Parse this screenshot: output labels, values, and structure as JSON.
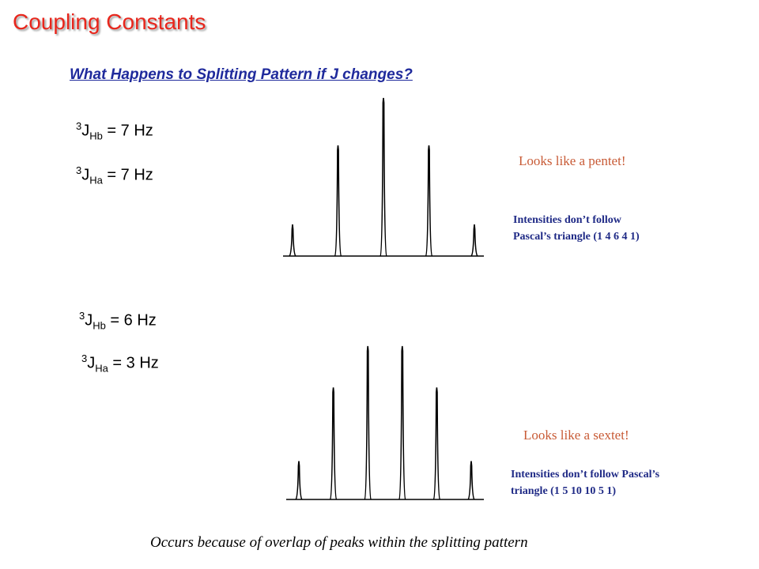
{
  "title": "Coupling Constants",
  "subtitle": "What Happens to Splitting Pattern if J changes?",
  "example1": {
    "j1": {
      "sup": "3",
      "j": "J",
      "sub": "Hb",
      "value": " = 7 Hz"
    },
    "j2": {
      "sup": "3",
      "j": "J",
      "sub": "Ha",
      "value": " = 7 Hz"
    },
    "note": "Looks like a pentet!",
    "intensity_line1": "Intensities don’t follow",
    "intensity_line2": "Pascal’s triangle (1 4 6 4 1)",
    "peak_heights": [
      0.2,
      0.7,
      1.0,
      0.7,
      0.2
    ]
  },
  "example2": {
    "j1": {
      "sup": "3",
      "j": "J",
      "sub": "Hb",
      "value": " = 6 Hz"
    },
    "j2": {
      "sup": "3",
      "j": "J",
      "sub": "Ha",
      "value": " = 3 Hz"
    },
    "note": "Looks like a sextet!",
    "intensity_line1": "Intensities don’t follow Pascal’s",
    "intensity_line2": "triangle (1 5 10 10 5 1)",
    "peak_heights": [
      0.25,
      0.73,
      1.0,
      1.0,
      0.73,
      0.25
    ]
  },
  "footer": "Occurs because of overlap of peaks within the splitting pattern",
  "colors": {
    "title": "#e8261c",
    "subtitle": "#1f2a9c",
    "note": "#c85b36",
    "intensity": "#1f2a86"
  }
}
